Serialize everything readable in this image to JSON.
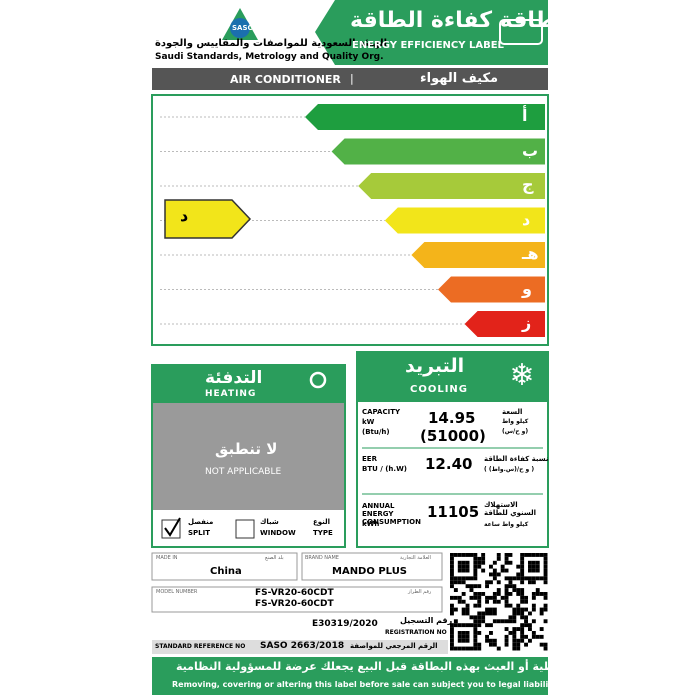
{
  "header": {
    "logo": "SASO",
    "org_ar": "الهيئة السعودية للمواصفات والمقاييس والجودة",
    "org_en": "Saudi Standards, Metrology and Quality Org.",
    "label_ar": "بطاقة كفاءة الطاقة",
    "label_en": "ENERGY EFFICIENCY LABEL"
  },
  "product": {
    "en": "AIR CONDITIONER",
    "separator": "|",
    "ar": "مكيف الهواء"
  },
  "scale": {
    "classes": [
      "أ",
      "ب",
      "ج",
      "د",
      "هـ",
      "و",
      "ز"
    ],
    "rating": "د"
  },
  "heating": {
    "title_ar": "التدفئة",
    "title_en": "HEATING",
    "na_ar": "لا تنطبق",
    "na_en": "NOT APPLICABLE"
  },
  "type": {
    "label_ar": "النوع",
    "label_en": "TYPE",
    "options": [
      {
        "ar": "منفصل",
        "en": "SPLIT"
      },
      {
        "ar": "شباك",
        "en": "WINDOW"
      }
    ]
  },
  "cooling": {
    "title_ar": "التبريد",
    "title_en": "COOLING",
    "capacity": {
      "label_en": "CAPACITY",
      "unit_en": "kW",
      "unit2_en": "(Btu/h)",
      "value": "14.95",
      "value2": "(51000)",
      "label_ar": "السعة",
      "unit_ar": "كيلو واط",
      "unit2_ar": "(و ح/س)"
    },
    "eer": {
      "label_en": "EER",
      "unit_en": "BTU / (h.W)",
      "value": "12.40",
      "label_ar": "نسبة كفاءة الطاقة",
      "unit_ar": "( و ح/(س.واط) )"
    },
    "annual": {
      "label_en": "ANNUAL ENERGY CONSUMPTION",
      "unit_en": "kWh",
      "value": "11105",
      "label_ar": "الاستهلاك السنوي للطاقة",
      "unit_ar": "كيلو واط ساعة"
    }
  },
  "info": {
    "made_in": {
      "label_en": "MADE IN",
      "label_ar": "بلد الصنع",
      "value": "China"
    },
    "brand": {
      "label_en": "BRAND NAME",
      "label_ar": "العلامة التجارية",
      "value": "MANDO PLUS"
    },
    "model": {
      "label_en": "MODEL NUMBER",
      "label_ar": "رقم الطراز",
      "values": [
        "FS-VR20-60CDT",
        "FS-VR20-60CDT"
      ]
    },
    "registration": {
      "value": "E30319/2020",
      "label_ar": "رقم التسجيل",
      "label_en": "REGISTRATION NO"
    },
    "standard": {
      "label_en": "STANDARD REFERENCE NO",
      "value": "SASO 2663/2018",
      "label_ar": "الرقم المرجعي للمواصفة"
    }
  },
  "footer": {
    "ar": "إزالة أو تغطية أو العبث بهذه البطاقة قبل البيع يجعلك عرضة للمسؤولية النظامية",
    "en": "Removing, covering or altering this label before sale can subject you to legal liability"
  }
}
